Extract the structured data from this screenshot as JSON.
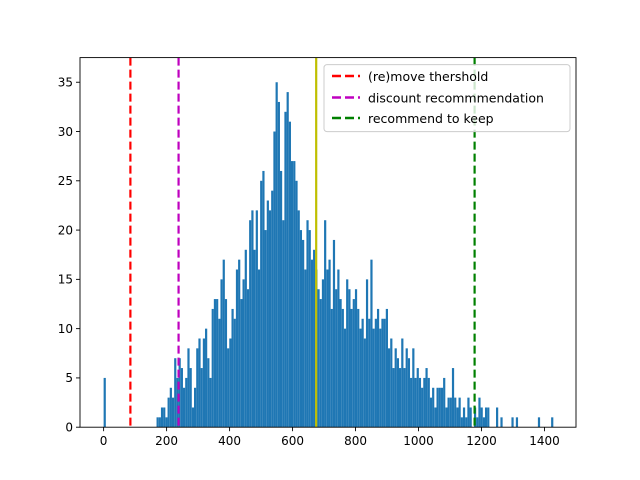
{
  "chart_data": {
    "type": "bar",
    "title": "",
    "xlabel": "",
    "ylabel": "",
    "xlim": [
      -75,
      1500
    ],
    "ylim": [
      0,
      37.5
    ],
    "xticks": [
      0,
      200,
      400,
      600,
      800,
      1000,
      1200,
      1400
    ],
    "yticks": [
      0,
      5,
      10,
      15,
      20,
      25,
      30,
      35
    ],
    "bar_color": "#1f77b4",
    "bin_width": 7,
    "bins": [
      [
        0,
        5
      ],
      [
        168,
        1
      ],
      [
        175,
        1
      ],
      [
        182,
        2
      ],
      [
        189,
        2
      ],
      [
        196,
        1
      ],
      [
        203,
        3
      ],
      [
        210,
        4
      ],
      [
        217,
        3
      ],
      [
        224,
        7
      ],
      [
        231,
        5
      ],
      [
        238,
        7
      ],
      [
        245,
        6
      ],
      [
        252,
        4
      ],
      [
        259,
        5
      ],
      [
        266,
        8
      ],
      [
        273,
        6
      ],
      [
        280,
        2
      ],
      [
        287,
        4
      ],
      [
        294,
        8
      ],
      [
        301,
        9
      ],
      [
        308,
        6
      ],
      [
        315,
        9
      ],
      [
        322,
        10
      ],
      [
        329,
        7
      ],
      [
        336,
        5
      ],
      [
        343,
        12
      ],
      [
        350,
        13
      ],
      [
        357,
        13
      ],
      [
        364,
        11
      ],
      [
        371,
        15
      ],
      [
        378,
        17
      ],
      [
        385,
        13
      ],
      [
        392,
        8
      ],
      [
        399,
        9
      ],
      [
        406,
        12
      ],
      [
        413,
        11
      ],
      [
        420,
        16
      ],
      [
        427,
        17
      ],
      [
        434,
        13
      ],
      [
        441,
        15
      ],
      [
        448,
        18
      ],
      [
        455,
        14
      ],
      [
        462,
        21
      ],
      [
        469,
        22
      ],
      [
        476,
        18
      ],
      [
        483,
        22
      ],
      [
        490,
        16
      ],
      [
        497,
        25
      ],
      [
        504,
        26
      ],
      [
        511,
        20
      ],
      [
        518,
        23
      ],
      [
        525,
        22
      ],
      [
        532,
        24
      ],
      [
        539,
        30
      ],
      [
        546,
        35
      ],
      [
        553,
        33
      ],
      [
        560,
        26
      ],
      [
        567,
        21
      ],
      [
        574,
        32
      ],
      [
        581,
        34
      ],
      [
        588,
        31
      ],
      [
        595,
        27
      ],
      [
        602,
        27
      ],
      [
        609,
        25
      ],
      [
        616,
        22
      ],
      [
        623,
        20
      ],
      [
        630,
        19
      ],
      [
        637,
        16
      ],
      [
        644,
        21
      ],
      [
        651,
        20
      ],
      [
        658,
        17
      ],
      [
        665,
        18
      ],
      [
        672,
        16
      ],
      [
        679,
        14
      ],
      [
        686,
        13
      ],
      [
        693,
        15
      ],
      [
        700,
        21
      ],
      [
        707,
        16
      ],
      [
        714,
        17
      ],
      [
        721,
        12
      ],
      [
        728,
        19
      ],
      [
        735,
        14
      ],
      [
        742,
        16
      ],
      [
        749,
        13
      ],
      [
        756,
        12
      ],
      [
        763,
        10
      ],
      [
        770,
        15
      ],
      [
        777,
        14
      ],
      [
        784,
        12
      ],
      [
        791,
        13
      ],
      [
        798,
        14
      ],
      [
        805,
        12
      ],
      [
        812,
        10
      ],
      [
        819,
        11
      ],
      [
        826,
        9
      ],
      [
        833,
        15
      ],
      [
        840,
        11
      ],
      [
        847,
        17
      ],
      [
        854,
        10
      ],
      [
        861,
        11
      ],
      [
        868,
        12
      ],
      [
        875,
        10
      ],
      [
        882,
        11
      ],
      [
        889,
        11
      ],
      [
        896,
        12
      ],
      [
        903,
        8
      ],
      [
        910,
        9
      ],
      [
        917,
        6
      ],
      [
        924,
        8
      ],
      [
        931,
        7
      ],
      [
        938,
        6
      ],
      [
        945,
        9
      ],
      [
        952,
        6
      ],
      [
        959,
        8
      ],
      [
        966,
        7
      ],
      [
        973,
        5
      ],
      [
        980,
        8
      ],
      [
        987,
        5
      ],
      [
        994,
        6
      ],
      [
        1001,
        5
      ],
      [
        1008,
        4
      ],
      [
        1015,
        5
      ],
      [
        1022,
        6
      ],
      [
        1029,
        5
      ],
      [
        1036,
        3
      ],
      [
        1043,
        4
      ],
      [
        1050,
        2
      ],
      [
        1057,
        4
      ],
      [
        1064,
        4
      ],
      [
        1071,
        4
      ],
      [
        1078,
        5
      ],
      [
        1085,
        2
      ],
      [
        1092,
        3
      ],
      [
        1099,
        3
      ],
      [
        1106,
        6
      ],
      [
        1113,
        3
      ],
      [
        1120,
        2
      ],
      [
        1127,
        3
      ],
      [
        1134,
        1
      ],
      [
        1141,
        2
      ],
      [
        1148,
        1
      ],
      [
        1155,
        3
      ],
      [
        1162,
        2
      ],
      [
        1176,
        2
      ],
      [
        1183,
        1
      ],
      [
        1190,
        3
      ],
      [
        1197,
        2
      ],
      [
        1204,
        1
      ],
      [
        1211,
        2
      ],
      [
        1218,
        2
      ],
      [
        1246,
        2
      ],
      [
        1260,
        1
      ],
      [
        1295,
        1
      ],
      [
        1309,
        1
      ],
      [
        1379,
        1
      ],
      [
        1421,
        1
      ]
    ],
    "vlines": [
      {
        "x": 85,
        "color": "#ff0000",
        "style": "dashed",
        "label": "(re)move thershold"
      },
      {
        "x": 238,
        "color": "#bf00bf",
        "style": "dashed",
        "label": "discount recommmendation"
      },
      {
        "x": 1178,
        "color": "#008000",
        "style": "dashed",
        "label": "recommend to keep"
      },
      {
        "x": 675,
        "color": "#bfbf00",
        "style": "solid",
        "label": ""
      }
    ],
    "legend": {
      "placement": "top-right",
      "entries": [
        {
          "label": "(re)move thershold",
          "color": "#ff0000"
        },
        {
          "label": "discount recommmendation",
          "color": "#bf00bf"
        },
        {
          "label": "recommend to keep",
          "color": "#008000"
        }
      ]
    },
    "grid": false
  }
}
